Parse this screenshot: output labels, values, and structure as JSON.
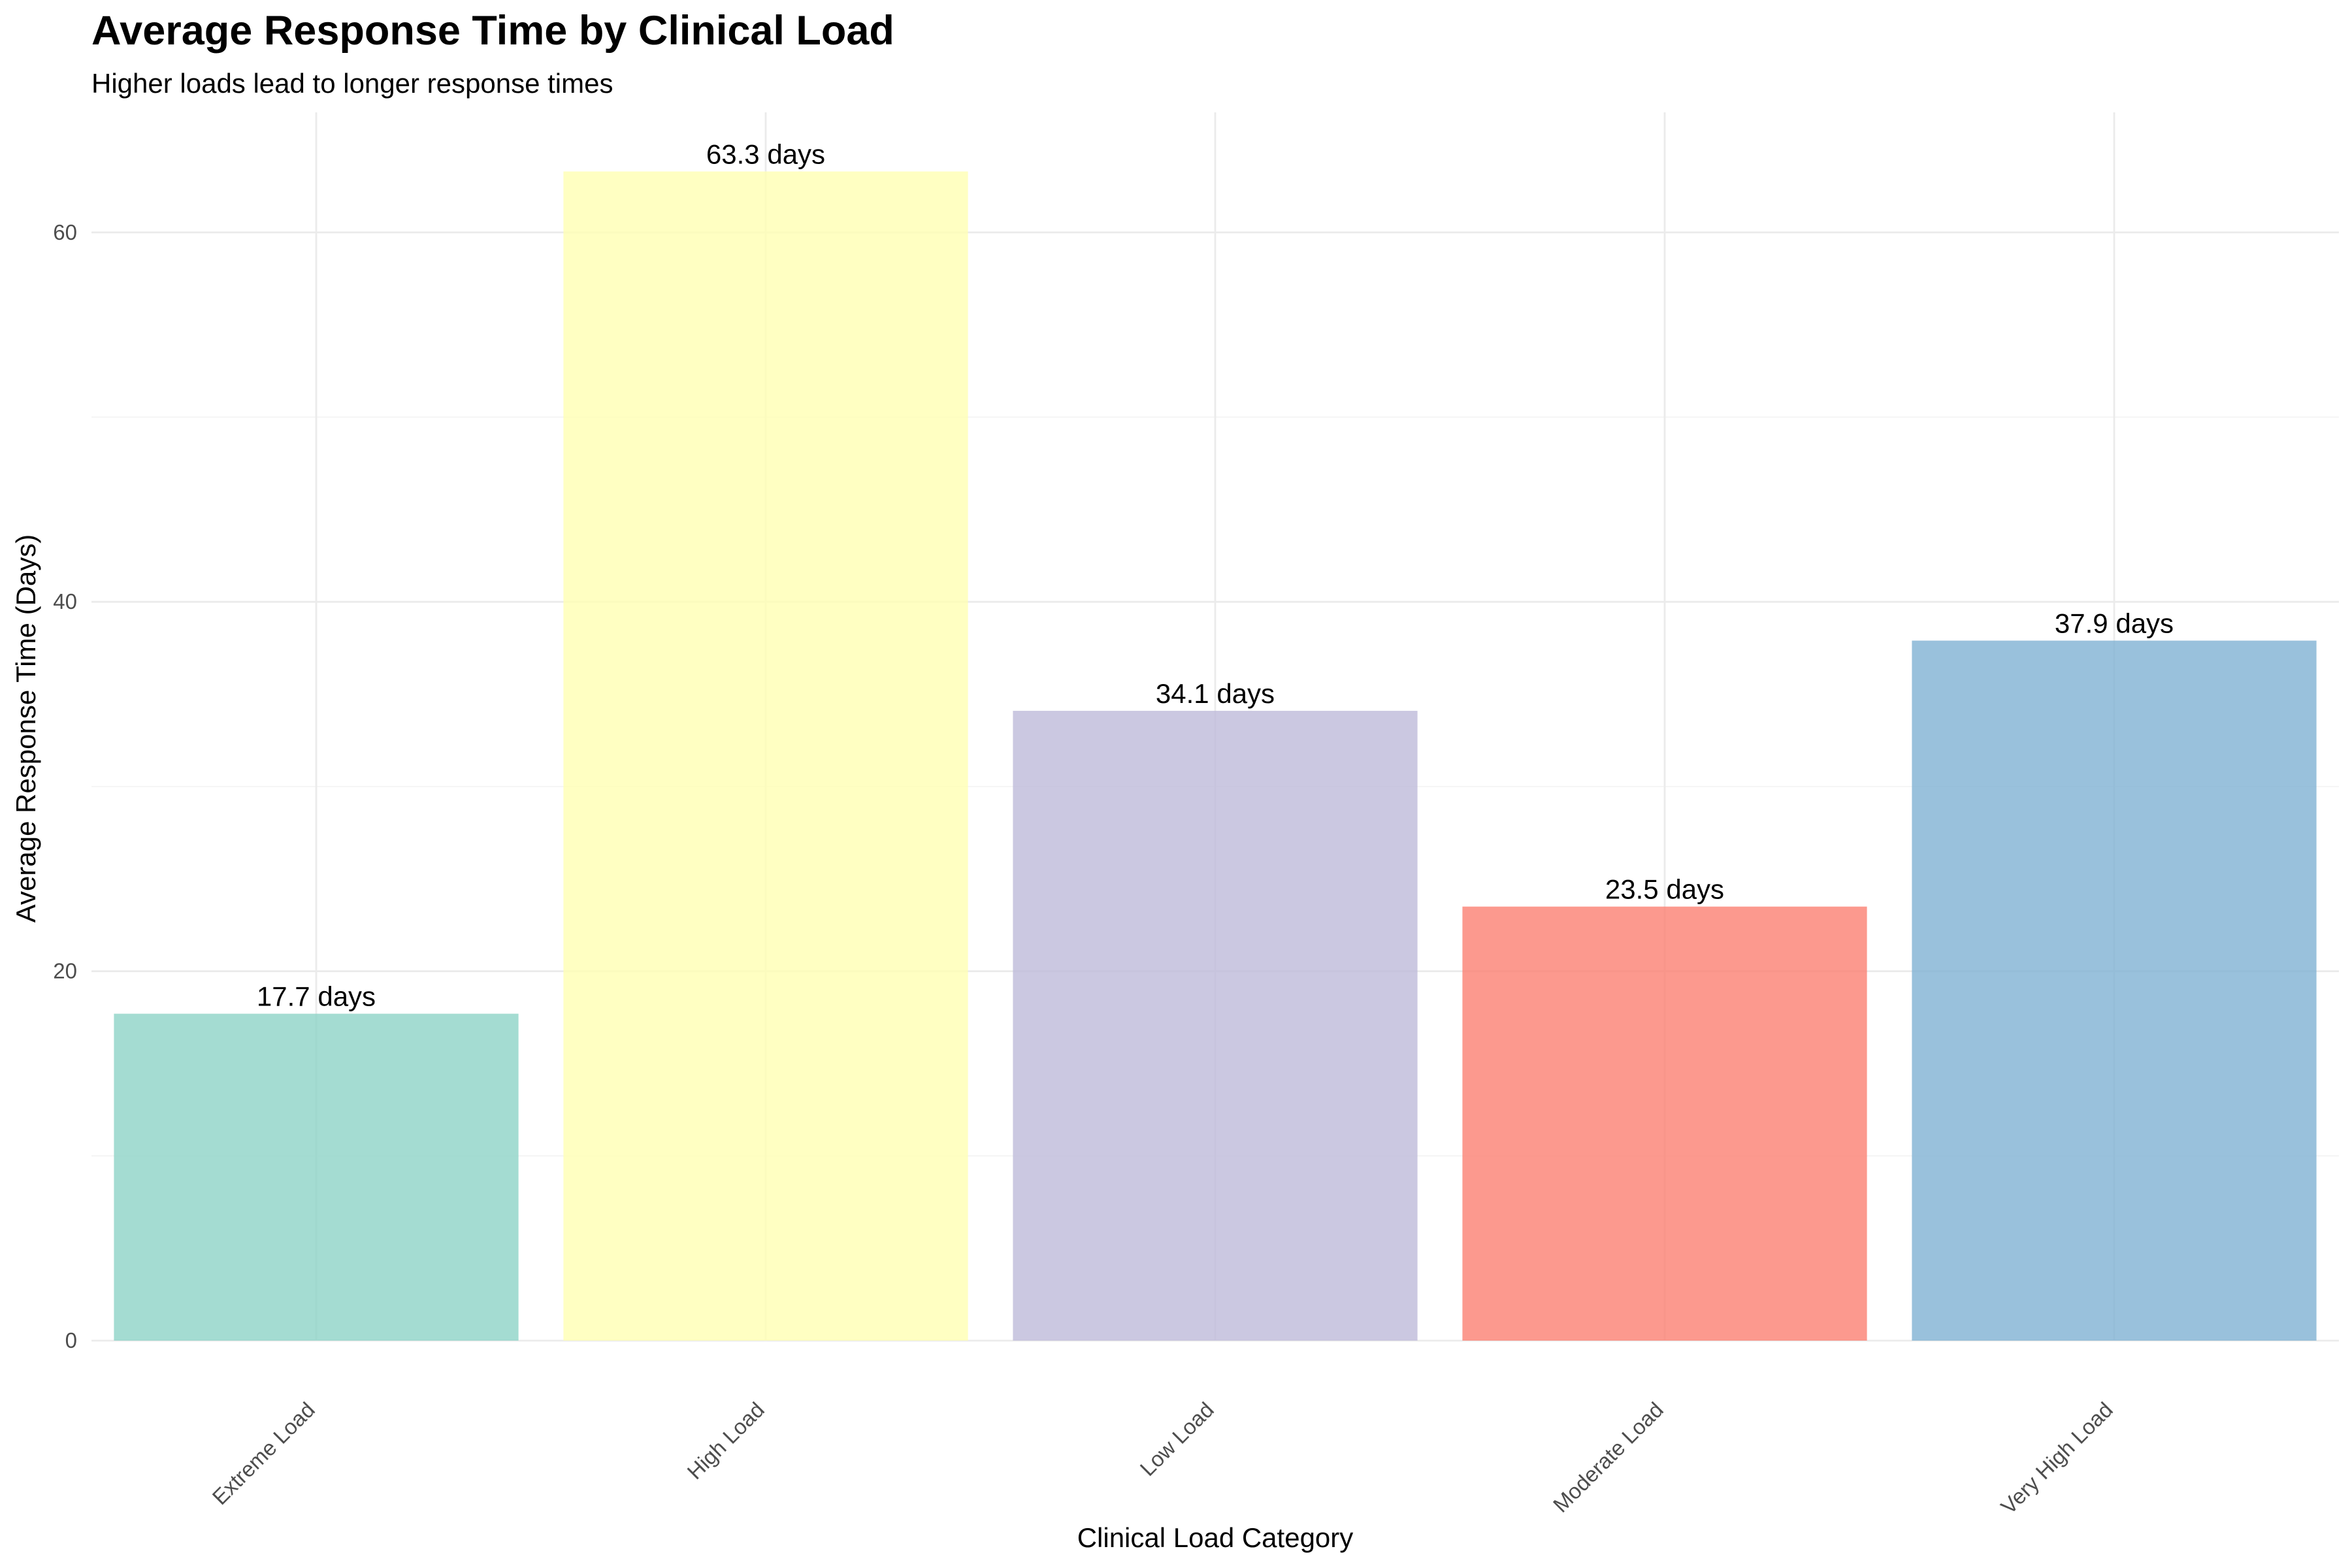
{
  "chart_data": {
    "type": "bar",
    "title": "Average Response Time by Clinical Load",
    "subtitle": "Higher loads lead to longer response times",
    "xlabel": "Clinical Load Category",
    "ylabel": "Average Response Time (Days)",
    "categories": [
      "Extreme Load",
      "High Load",
      "Low Load",
      "Moderate Load",
      "Very High Load"
    ],
    "values": [
      17.7,
      63.3,
      34.1,
      23.5,
      37.9
    ],
    "value_labels": [
      "17.7 days",
      "63.3 days",
      "34.1 days",
      "23.5 days",
      "37.9 days"
    ],
    "colors": [
      "#8dd3c7",
      "#ffffb3",
      "#bebada",
      "#fb8072",
      "#80b1d3"
    ],
    "yticks": [
      0,
      20,
      40,
      60
    ],
    "ylim": [
      0,
      66.5
    ],
    "grid": true,
    "legend": "none"
  }
}
